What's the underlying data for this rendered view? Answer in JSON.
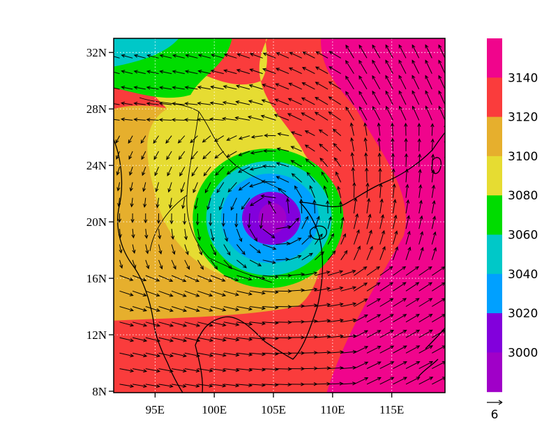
{
  "map": {
    "lat_ticks": [
      "32N",
      "28N",
      "24N",
      "20N",
      "16N",
      "12N",
      "8N"
    ],
    "lon_ticks": [
      "95E",
      "100E",
      "105E",
      "110E",
      "115E"
    ],
    "lon_range": [
      91.5,
      119.5
    ],
    "lat_range": [
      7.9,
      33.0
    ],
    "grid": "dotted",
    "low_center": {
      "lon": 105,
      "lat": 20.5
    }
  },
  "colorbar": {
    "labels": [
      "3140",
      "3120",
      "3100",
      "3080",
      "3060",
      "3040",
      "3020",
      "3000"
    ],
    "colors": [
      "#f0058c",
      "#fa3c3c",
      "#e6af2d",
      "#e6dc32",
      "#00dc00",
      "#00c8c8",
      "#00a0ff",
      "#8200dc",
      "#a000c8"
    ],
    "levels": [
      3000,
      3020,
      3040,
      3060,
      3080,
      3100,
      3120,
      3140
    ]
  },
  "vector_key": {
    "label": "6"
  }
}
